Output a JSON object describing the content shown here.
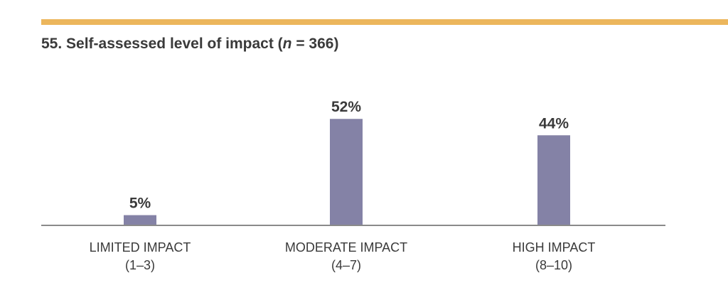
{
  "header": {
    "title_prefix": "55. Self-assessed level of impact (",
    "title_n": "n",
    "title_suffix": " = 366)"
  },
  "colors": {
    "accent_rule": "#ecb65c",
    "bar": "#8482a6",
    "axis": "#8a8a8a",
    "text": "#3a3a3a"
  },
  "chart_data": {
    "type": "bar",
    "title": "55. Self-assessed level of impact (n = 366)",
    "categories": [
      [
        "LIMITED IMPACT",
        "(1–3)"
      ],
      [
        "MODERATE IMPACT",
        "(4–7)"
      ],
      [
        "HIGH IMPACT",
        "(8–10)"
      ]
    ],
    "values": [
      5,
      52,
      44
    ],
    "value_labels": [
      "5%",
      "52%",
      "44%"
    ],
    "ylim": [
      0,
      100
    ],
    "grid": false,
    "legend": "none"
  }
}
